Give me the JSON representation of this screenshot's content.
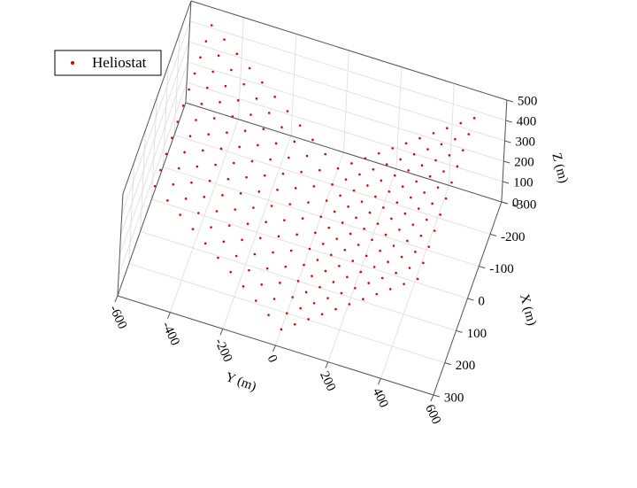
{
  "chart_data": {
    "type": "scatter3d",
    "x_label": "X (m)",
    "y_label": "Y (m)",
    "z_label": "Z (m)",
    "xlim": [
      -300,
      300
    ],
    "ylim": [
      -600,
      600
    ],
    "zlim": [
      0,
      500
    ],
    "xticks": [
      -300,
      -200,
      -100,
      0,
      100,
      200,
      300
    ],
    "yticks": [
      -600,
      -400,
      -200,
      0,
      200,
      400,
      600
    ],
    "zticks": [
      0,
      100,
      200,
      300,
      400,
      500
    ],
    "grid": true,
    "legend": "upper left",
    "series": [
      {
        "name": "Heliostat",
        "color": "#e00000",
        "x": [
          -250,
          -200,
          -150,
          -100,
          -50,
          0,
          50,
          100,
          150,
          200,
          250,
          -250,
          -200,
          -150,
          -100,
          -50,
          0,
          50,
          100,
          150,
          200,
          250,
          -250,
          -200,
          -150,
          -100,
          -50,
          0,
          50,
          100,
          150,
          200,
          250,
          -250,
          -200,
          -150,
          -100,
          -50,
          0,
          50,
          100,
          150,
          200,
          250,
          -250,
          -200,
          -150,
          -100,
          -50,
          0,
          50,
          100,
          150,
          200,
          250,
          -250,
          -200,
          -150,
          -100,
          -50,
          0,
          50,
          100,
          150,
          200,
          250,
          -250,
          -200,
          -150,
          -100,
          -50,
          0,
          50,
          100,
          150,
          200,
          250,
          -250,
          -200,
          -150,
          -100,
          -50,
          0,
          50,
          100,
          150,
          200,
          250,
          -250,
          -200,
          -150,
          -100,
          -50,
          0,
          50,
          100,
          150,
          200,
          250,
          -250,
          -200,
          -150,
          -100,
          -50,
          0,
          50,
          100,
          150,
          200,
          250,
          -250,
          -200,
          -150,
          -100,
          -50,
          0,
          50,
          100,
          150,
          200,
          250,
          -250,
          -200,
          -150,
          -100,
          -50,
          0,
          50,
          100,
          150,
          200,
          250,
          -250,
          -200,
          -150,
          -100,
          -50,
          0,
          50,
          100,
          150,
          200,
          250,
          -250,
          -200,
          -150,
          -100,
          -50,
          0,
          50,
          100,
          150,
          200,
          250,
          -250,
          -200,
          -150,
          -100,
          -50,
          0,
          50,
          100,
          150,
          200,
          250,
          -250,
          -200,
          -150,
          -100,
          -50,
          0,
          50,
          100,
          150,
          200,
          250,
          -250,
          -200,
          -150,
          -100,
          -50,
          0,
          50,
          100,
          150,
          200,
          250,
          -250,
          -200,
          -150,
          -100,
          -50,
          0,
          50,
          100,
          150,
          200,
          250,
          -250,
          -200,
          -150,
          -100,
          -50,
          0,
          50,
          100,
          150,
          200,
          250,
          -250,
          -200,
          -150,
          -100,
          -50,
          0,
          50,
          100,
          150,
          200,
          250,
          -250,
          -200,
          -150,
          -100,
          -50,
          0,
          50,
          100,
          150,
          200,
          250
        ],
        "y": [
          -500,
          -500,
          -500,
          -500,
          -500,
          -500,
          -500,
          -500,
          -500,
          -500,
          -500,
          -450,
          -450,
          -450,
          -450,
          -450,
          -450,
          -450,
          -450,
          -450,
          -450,
          -450,
          -400,
          -400,
          -400,
          -400,
          -400,
          -400,
          -400,
          -400,
          -400,
          -400,
          -400,
          -350,
          -350,
          -350,
          -350,
          -350,
          -350,
          -350,
          -350,
          -350,
          -350,
          -350,
          -300,
          -300,
          -300,
          -300,
          -300,
          -300,
          -300,
          -300,
          -300,
          -300,
          -300,
          -250,
          -250,
          -250,
          -250,
          -250,
          -250,
          -250,
          -250,
          -250,
          -250,
          -250,
          -200,
          -200,
          -200,
          -200,
          -200,
          -200,
          -200,
          -200,
          -200,
          -200,
          -200,
          -150,
          -150,
          -150,
          -150,
          -150,
          -150,
          -150,
          -150,
          -150,
          -150,
          -150,
          -100,
          -100,
          -100,
          -100,
          -100,
          -100,
          -100,
          -100,
          -100,
          -100,
          -100,
          -50,
          -50,
          -50,
          -50,
          -50,
          -50,
          -50,
          -50,
          -50,
          -50,
          -50,
          0,
          0,
          0,
          0,
          0,
          0,
          0,
          0,
          0,
          0,
          0,
          50,
          50,
          50,
          50,
          50,
          50,
          50,
          50,
          50,
          50,
          50,
          100,
          100,
          100,
          100,
          100,
          100,
          100,
          100,
          100,
          100,
          100,
          150,
          150,
          150,
          150,
          150,
          150,
          150,
          150,
          150,
          150,
          150,
          200,
          200,
          200,
          200,
          200,
          200,
          200,
          200,
          200,
          200,
          200,
          250,
          250,
          250,
          250,
          250,
          250,
          250,
          250,
          250,
          250,
          250,
          300,
          300,
          300,
          300,
          300,
          300,
          300,
          300,
          300,
          300,
          300,
          350,
          350,
          350,
          350,
          350,
          350,
          350,
          350,
          350,
          350,
          350,
          400,
          400,
          400,
          400,
          400,
          400,
          400,
          400,
          400,
          400,
          400,
          450,
          450,
          450,
          450,
          450,
          450,
          450,
          450,
          450,
          450,
          450,
          500,
          500,
          500,
          500,
          500,
          500,
          500,
          500,
          500,
          500,
          500
        ],
        "z": [
          500,
          500,
          500,
          500,
          500,
          500,
          500,
          500,
          500,
          500,
          500,
          450,
          450,
          450,
          450,
          450,
          450,
          450,
          450,
          450,
          450,
          450,
          400,
          400,
          400,
          400,
          400,
          400,
          400,
          400,
          400,
          400,
          400,
          350,
          350,
          350,
          350,
          350,
          350,
          350,
          350,
          350,
          350,
          350,
          300,
          300,
          300,
          300,
          300,
          300,
          300,
          300,
          300,
          300,
          300,
          250,
          250,
          250,
          250,
          250,
          250,
          250,
          250,
          250,
          250,
          250,
          200,
          200,
          200,
          200,
          200,
          200,
          200,
          200,
          200,
          200,
          200,
          150,
          150,
          150,
          150,
          150,
          150,
          150,
          150,
          150,
          150,
          150,
          100,
          100,
          100,
          100,
          100,
          100,
          100,
          100,
          100,
          100,
          100,
          50,
          50,
          50,
          50,
          50,
          50,
          50,
          50,
          50,
          50,
          50,
          0,
          0,
          0,
          0,
          0,
          0,
          0,
          0,
          0,
          0,
          0,
          45,
          45,
          45,
          45,
          45,
          45,
          45,
          45,
          45,
          45,
          45,
          90,
          90,
          90,
          90,
          90,
          90,
          90,
          90,
          90,
          90,
          90,
          135,
          135,
          135,
          135,
          135,
          135,
          135,
          135,
          135,
          135,
          135,
          180,
          180,
          180,
          180,
          180,
          180,
          180,
          180,
          180,
          180,
          180,
          225,
          225,
          225,
          225,
          225,
          225,
          225,
          225,
          225,
          225,
          225,
          270,
          270,
          270,
          270,
          270,
          270,
          270,
          270,
          270,
          270,
          270,
          315,
          315,
          315,
          315,
          315,
          315,
          315,
          315,
          315,
          315,
          315,
          360,
          360,
          360,
          360,
          360,
          360,
          360,
          360,
          360,
          360,
          360,
          405,
          405,
          405,
          405,
          405,
          405,
          405,
          405,
          405,
          405,
          405,
          450,
          450,
          450,
          450,
          450,
          450,
          450,
          450,
          450,
          450,
          450
        ]
      }
    ]
  }
}
